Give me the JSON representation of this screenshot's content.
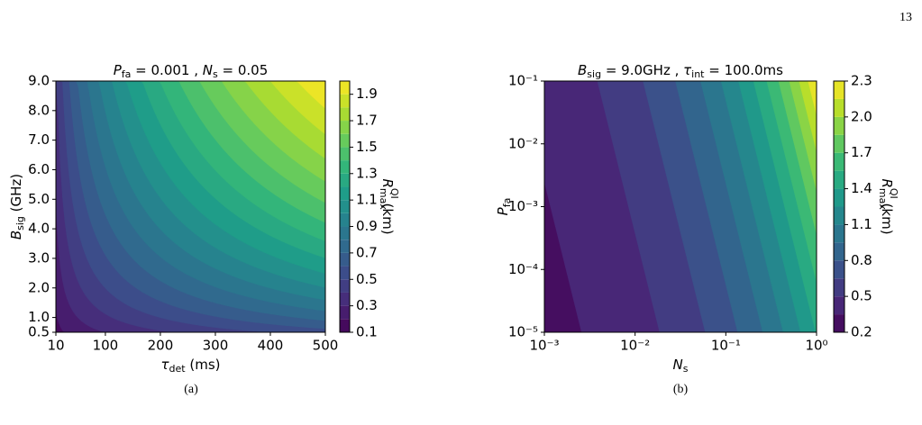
{
  "page_number": "13",
  "chart_data": [
    {
      "type": "contour",
      "colormap": "viridis",
      "title": [
        {
          "text": "P",
          "sub": "fa"
        },
        {
          "text": " = 0.001 , "
        },
        {
          "text": "N",
          "sub": "s"
        },
        {
          "text": " = 0.05"
        }
      ],
      "xlabel": [
        {
          "text": "τ",
          "sub": "det"
        },
        {
          "text": " (ms)"
        }
      ],
      "ylabel": [
        {
          "text": "B",
          "sub": "sig"
        },
        {
          "text": " (GHz)"
        }
      ],
      "colorbar_label": [
        {
          "text": "R",
          "sub": "max",
          "sup": "QI"
        },
        {
          "text": " (km)"
        }
      ],
      "xlim": [
        10,
        500
      ],
      "xticks": [
        10,
        100,
        200,
        300,
        400,
        500
      ],
      "ylim": [
        0.5,
        9
      ],
      "yticks": [
        0.5,
        {
          "value": 1,
          "label": "1.0"
        },
        {
          "value": 2,
          "label": "2.0"
        },
        {
          "value": 3,
          "label": "3.0"
        },
        {
          "value": 4,
          "label": "4.0"
        },
        {
          "value": 5,
          "label": "5.0"
        },
        {
          "value": 6,
          "label": "6.0"
        },
        {
          "value": 7,
          "label": "7.0"
        },
        {
          "value": 8,
          "label": "8.0"
        },
        {
          "value": 9,
          "label": "9.0"
        }
      ],
      "clim": [
        0.1,
        2.0
      ],
      "cticks": [
        0.1,
        0.3,
        0.5,
        0.7,
        0.9,
        1.1,
        1.3,
        1.5,
        1.7,
        1.9
      ],
      "caption": "(a)"
    },
    {
      "type": "contour",
      "colormap": "viridis",
      "xscale": "log",
      "yscale": "log",
      "title": [
        {
          "text": "B",
          "sub": "sig"
        },
        {
          "text": " = 9.0GHz , "
        },
        {
          "text": "τ",
          "sub": "int"
        },
        {
          "text": " = 100.0ms"
        }
      ],
      "xlabel": [
        {
          "text": "N",
          "sub": "s"
        }
      ],
      "ylabel": [
        {
          "text": "P",
          "sub": "fa"
        }
      ],
      "colorbar_label": [
        {
          "text": "R",
          "sub": "max",
          "sup": "QI"
        },
        {
          "text": " (km)"
        }
      ],
      "xlim": [
        0.001,
        1
      ],
      "xticks": [
        {
          "value": 0.001,
          "label": "10⁻³"
        },
        {
          "value": 0.01,
          "label": "10⁻²"
        },
        {
          "value": 0.1,
          "label": "10⁻¹"
        },
        {
          "value": 1,
          "label": "10⁰"
        }
      ],
      "ylim": [
        1e-05,
        0.1
      ],
      "yticks": [
        {
          "value": 1e-05,
          "label": "10⁻⁵"
        },
        {
          "value": 0.0001,
          "label": "10⁻⁴"
        },
        {
          "value": 0.001,
          "label": "10⁻³"
        },
        {
          "value": 0.01,
          "label": "10⁻²"
        },
        {
          "value": 0.1,
          "label": "10⁻¹"
        }
      ],
      "clim": [
        0.2,
        2.3
      ],
      "cticks": [
        0.2,
        0.5,
        0.8,
        1.1,
        1.4,
        1.7,
        {
          "value": 2,
          "label": "2.0"
        },
        2.3
      ],
      "caption": "(b)"
    }
  ]
}
